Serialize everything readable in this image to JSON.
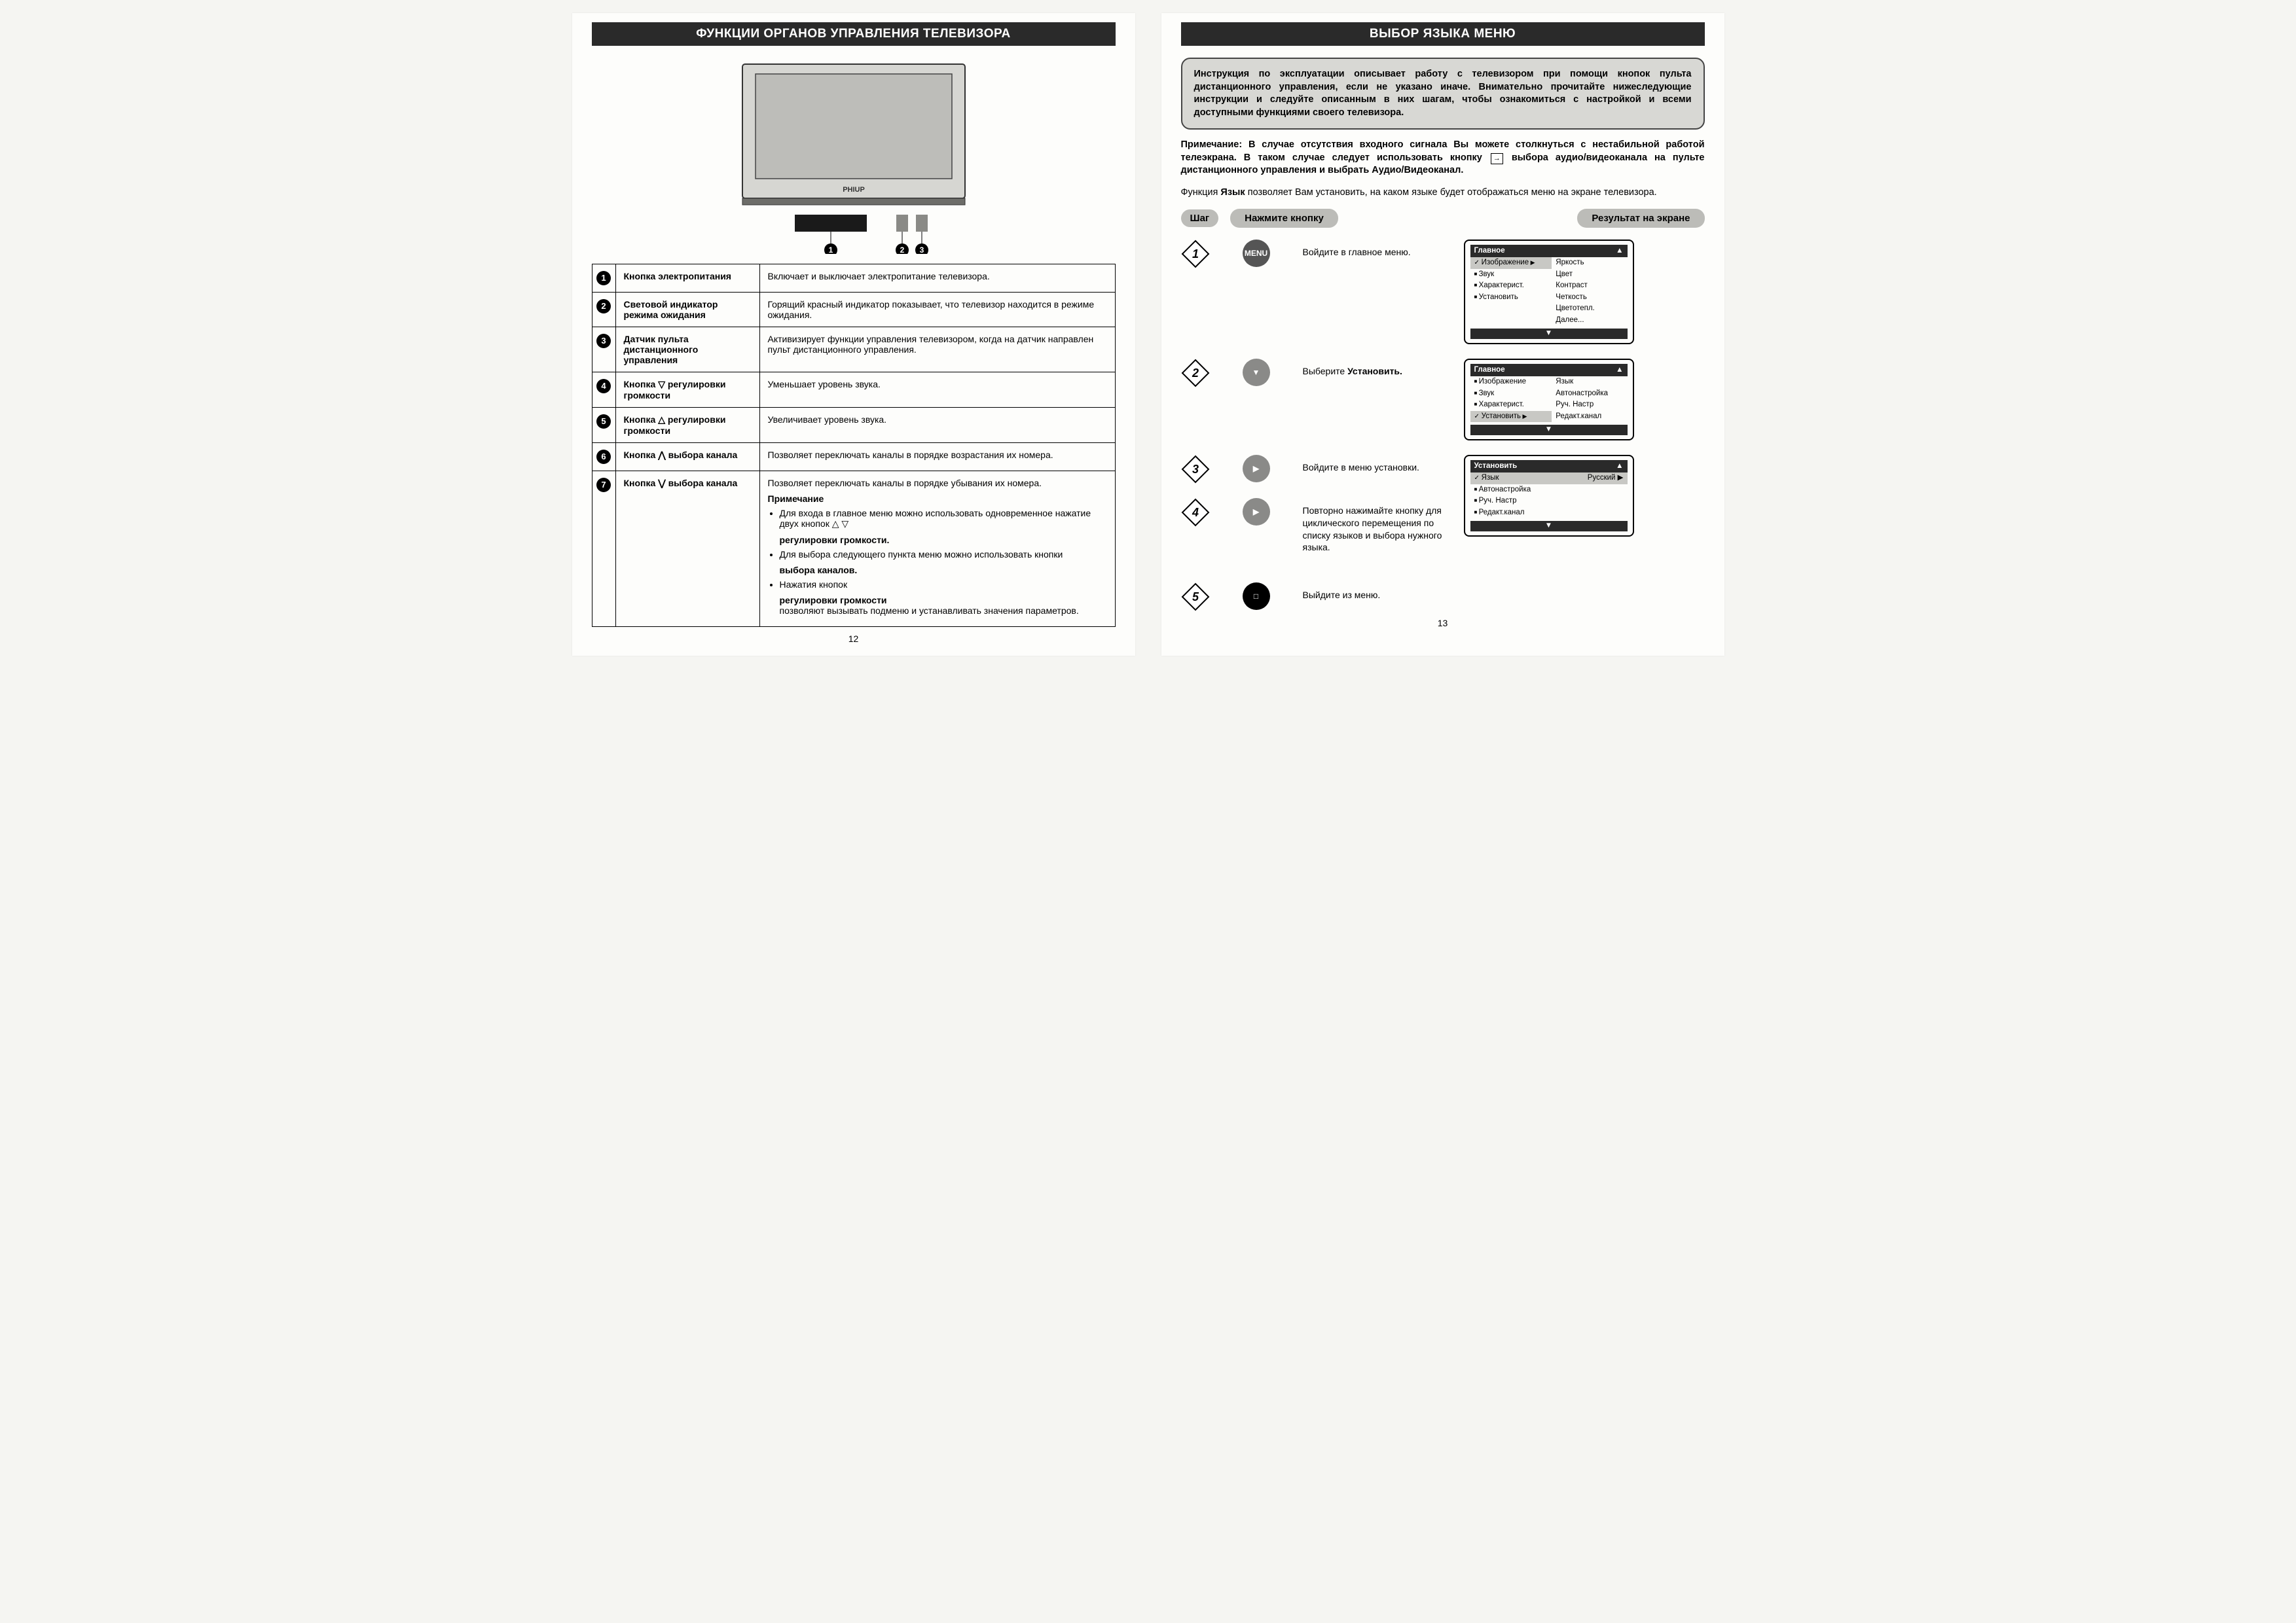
{
  "left": {
    "title": "ФУНКЦИИ ОРГАНОВ УПРАВЛЕНИЯ ТЕЛЕВИЗОРА",
    "tv_brand": "PHIUP",
    "rows": [
      {
        "n": "1",
        "name": "Кнопка электропитания",
        "desc": "Включает и выключает электропитание телевизора."
      },
      {
        "n": "2",
        "name": "Световой индикатор режима ожидания",
        "desc": "Горящий красный индикатор показывает, что телевизор находится в режиме ожидания."
      },
      {
        "n": "3",
        "name": "Датчик пульта дистанционного управления",
        "desc": "Активизирует функции управления телевизором, когда на датчик направлен пульт дистанционного управления."
      },
      {
        "n": "4",
        "name": "Кнопка ▽ регулировки громкости",
        "desc": "Уменьшает уровень звука."
      },
      {
        "n": "5",
        "name": "Кнопка △ регулировки громкости",
        "desc": "Увеличивает уровень звука."
      },
      {
        "n": "6",
        "name": "Кнопка ⋀ выбора канала",
        "desc": "Позволяет переключать каналы в порядке возрастания их номера."
      },
      {
        "n": "7",
        "name": "Кнопка ⋁ выбора канала",
        "desc": "Позволяет переключать каналы в порядке убывания их номера."
      }
    ],
    "note_title": "Примечание",
    "notes": [
      "Для входа в главное меню можно использовать одновременное нажатие двух кнопок △ ▽ <b>регулировки громкости.</b>",
      "Для выбора следующего пункта меню можно использовать кнопки <b>выбора каналов.</b>",
      "Нажатия кнопок <b>регулировки громкости</b> позволяют вызывать подменю и устанавливать значения параметров."
    ],
    "page": "12"
  },
  "right": {
    "title": "ВЫБОР ЯЗЫКА МЕНЮ",
    "info": "Инструкция по эксплуатации описывает работу с телевизором при помощи кнопок пульта дистанционного управления, если не указано иначе. Внимательно прочитайте нижеследующие инструкции и следуйте описанным в них шагам, чтобы ознакомиться с настройкой и всеми доступными функциями своего телевизора.",
    "note_html": "<b>Примечание: В случае отсутствия входного сигнала Вы можете столкнуться с нестабильной работой телеэкрана. В таком случае следует использовать кнопку <span class=\"inline-icon-box\">→</span> выбора аудио/видеоканала на пульте дистанционного управления и выбрать Аудио/Видеоканал.</b>",
    "para2": "Функция <b>Язык</b> позволяет Вам установить, на каком языке будет отображаться меню на экране телевизора.",
    "head": {
      "step": "Шаг",
      "press": "Нажмите кнопку",
      "result": "Результат на экране"
    },
    "steps": [
      {
        "n": "1",
        "btn": "MENU",
        "btnClass": "btn-dark",
        "text": "Войдите в главное меню."
      },
      {
        "n": "2",
        "btn": "V",
        "btnClass": "btn-gray",
        "text": "Выберите <b>Установить.</b>"
      },
      {
        "n": "3",
        "btn": ">",
        "btnClass": "btn-gray",
        "text": "Войдите в меню установки."
      },
      {
        "n": "4",
        "btn": ">",
        "btnClass": "btn-gray",
        "text": "Повторно нажимайте кнопку для циклического перемещения по списку языков и выбора нужного языка."
      },
      {
        "n": "5",
        "btn": "□",
        "btnClass": "btn-black",
        "text": "Выйдите из меню."
      }
    ],
    "menus": {
      "m1": {
        "header": "Главное",
        "arrow": "▲",
        "left": [
          [
            "Изображение",
            true
          ],
          [
            "Звук",
            false
          ],
          [
            "Характерист.",
            false
          ],
          [
            "Установить",
            false
          ]
        ],
        "right": [
          "Яркость",
          "Цвет",
          "Контраст",
          "Четкость",
          "Цветотепл.",
          "Далее..."
        ]
      },
      "m2": {
        "header": "Главное",
        "arrow": "▲",
        "left": [
          [
            "Изображение",
            false
          ],
          [
            "Звук",
            false
          ],
          [
            "Характерист.",
            false
          ],
          [
            "Установить",
            true
          ]
        ],
        "right": [
          "Язык",
          "Автонастройка",
          "Руч. Настр",
          "Редакт.канал"
        ]
      },
      "m3": {
        "header": "Установить",
        "arrow": "▲",
        "rows": [
          [
            "Язык",
            "Русский",
            true
          ],
          [
            "Автонастройка",
            "",
            false
          ],
          [
            "Руч. Настр",
            "",
            false
          ],
          [
            "Редакт.канал",
            "",
            false
          ]
        ]
      }
    },
    "page": "13"
  },
  "style": {
    "title_bg": "#2a2a2a",
    "title_color": "#ffffff",
    "pill_bg": "#bcbcb8",
    "info_bg": "#d8d8d4",
    "circle_bg": "#000000"
  }
}
